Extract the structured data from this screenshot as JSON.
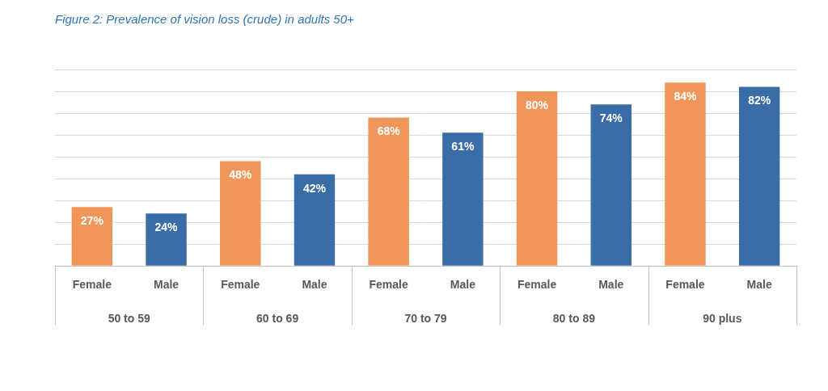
{
  "chart_data": {
    "type": "bar",
    "title": "Figure 2: Prevalence of vision loss (crude) in adults 50+",
    "categories": [
      "50 to 59",
      "60 to 69",
      "70 to 79",
      "80 to 89",
      "90 plus"
    ],
    "series": [
      {
        "name": "Female",
        "color": "#f0965a",
        "values": [
          27,
          48,
          68,
          80,
          84
        ],
        "value_labels": [
          "27%",
          "48%",
          "68%",
          "80%",
          "84%"
        ]
      },
      {
        "name": "Male",
        "color": "#3a6ca8",
        "values": [
          24,
          42,
          61,
          74,
          82
        ],
        "value_labels": [
          "24%",
          "42%",
          "61%",
          "74%",
          "82%"
        ]
      }
    ],
    "ylim": [
      0,
      90
    ],
    "yticks": [
      0,
      10,
      20,
      30,
      40,
      50,
      60,
      70,
      80,
      90
    ],
    "grid": true,
    "data_labels": true,
    "tick_labels": "x"
  }
}
